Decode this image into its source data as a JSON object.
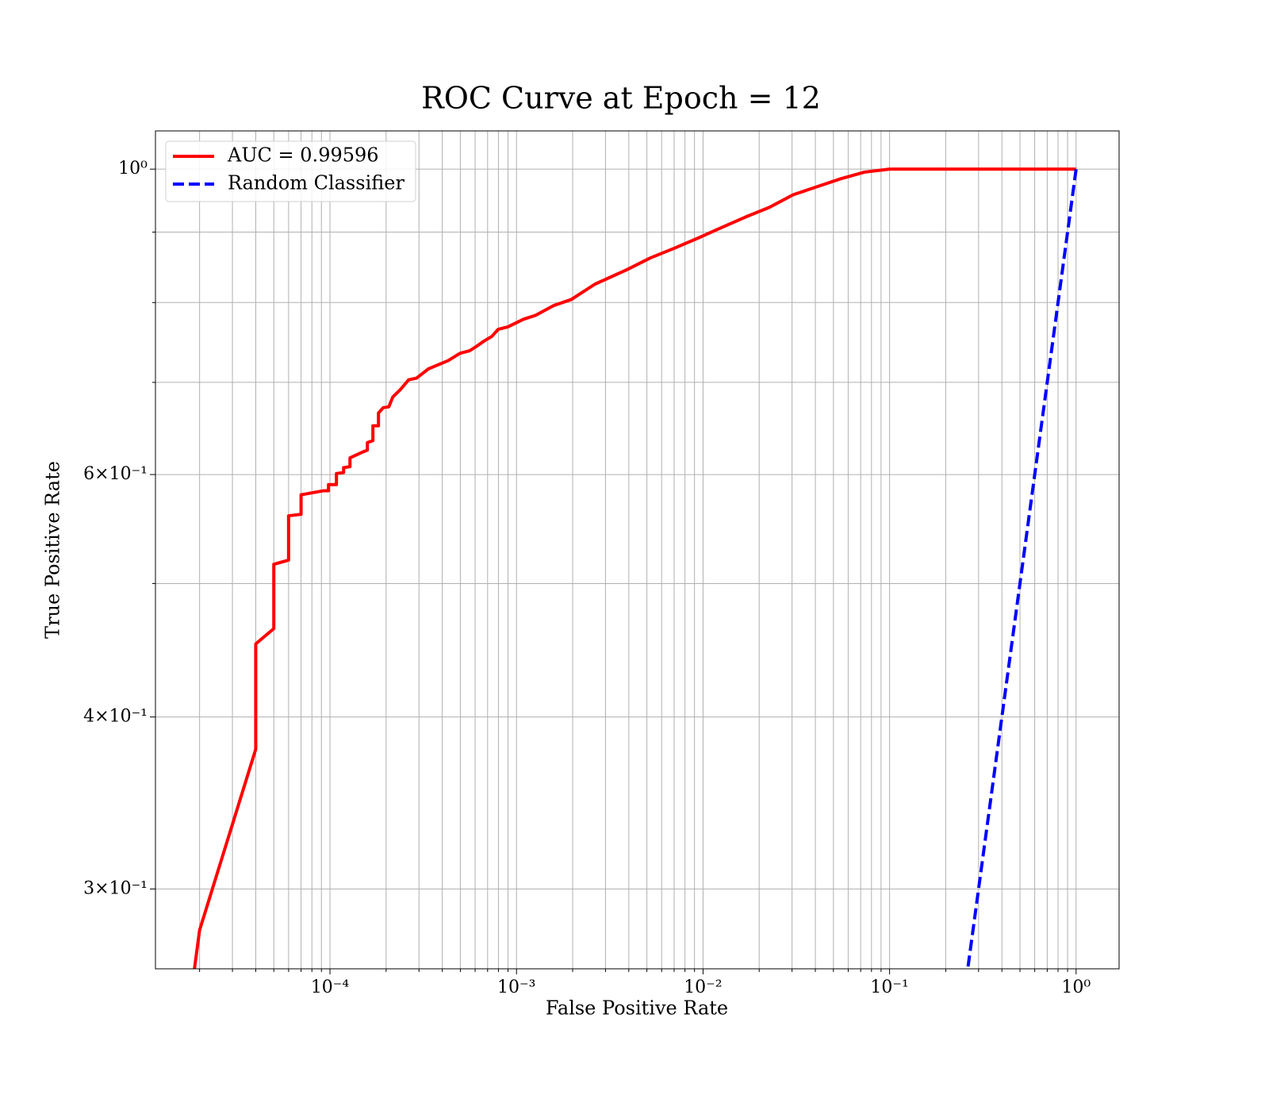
{
  "chart_data": {
    "type": "line",
    "title": "ROC Curve at Epoch = 12",
    "xlabel": "False Positive Rate",
    "ylabel": "True Positive Rate",
    "xscale": "log",
    "yscale": "log",
    "grid": true,
    "legend": "upper left",
    "xlim": [
      1.16e-05,
      1.7
    ],
    "ylim": [
      0.2625,
      1.066
    ],
    "xticks": [
      {
        "value": 0.0001,
        "label": "10⁻⁴"
      },
      {
        "value": 0.001,
        "label": "10⁻³"
      },
      {
        "value": 0.01,
        "label": "10⁻²"
      },
      {
        "value": 0.1,
        "label": "10⁻¹"
      },
      {
        "value": 1,
        "label": "10⁰"
      }
    ],
    "xminorticks": [
      2e-05,
      3e-05,
      4e-05,
      5e-05,
      6e-05,
      7e-05,
      8e-05,
      9e-05,
      0.0002,
      0.0003,
      0.0004,
      0.0005,
      0.0006,
      0.0007,
      0.0008,
      0.0009,
      0.002,
      0.003,
      0.004,
      0.005,
      0.006,
      0.007,
      0.008,
      0.009,
      0.02,
      0.03,
      0.04,
      0.05,
      0.06,
      0.07,
      0.08,
      0.09,
      0.2,
      0.3,
      0.4,
      0.5,
      0.6,
      0.7,
      0.8,
      0.9
    ],
    "yticks": [
      {
        "value": 0.3,
        "label": "3×10⁻¹"
      },
      {
        "value": 0.4,
        "label": "4×10⁻¹"
      },
      {
        "value": 0.6,
        "label": "6×10⁻¹"
      },
      {
        "value": 1,
        "label": "10⁰"
      }
    ],
    "yminorticks": [
      0.5,
      0.7,
      0.8,
      0.9
    ],
    "series": [
      {
        "name": "AUC = 0.99596",
        "color": "#ff0000",
        "style": "solid",
        "x": [
          1.86e-05,
          2e-05,
          4e-05,
          4e-05,
          5e-05,
          5e-05,
          6e-05,
          6e-05,
          7e-05,
          7e-05,
          9.26e-05,
          9.82e-05,
          9.82e-05,
          0.0001083,
          0.0001083,
          0.0001183,
          0.0001183,
          0.000128,
          0.000128,
          0.0001497,
          0.0001587,
          0.0001587,
          0.0001699,
          0.0001699,
          0.000182,
          0.000182,
          0.000193,
          0.0002067,
          0.0002171,
          0.0002394,
          0.000264,
          0.0002911,
          0.0003372,
          0.0004306,
          0.0004986,
          0.000561,
          0.000606,
          0.000669,
          0.000738,
          0.000798,
          0.000897,
          0.001091,
          0.001263,
          0.001582,
          0.001963,
          0.002633,
          0.003894,
          0.00522,
          0.007,
          0.00939,
          0.0126,
          0.01689,
          0.02266,
          0.03039,
          0.04076,
          0.0547,
          0.0733,
          0.1,
          1
        ],
        "y": [
          0.26,
          0.28,
          0.379,
          0.452,
          0.4637,
          0.5164,
          0.52,
          0.56,
          0.5614,
          0.58,
          0.584,
          0.584,
          0.59,
          0.59,
          0.601,
          0.602,
          0.607,
          0.608,
          0.617,
          0.623,
          0.625,
          0.633,
          0.635,
          0.651,
          0.651,
          0.665,
          0.671,
          0.672,
          0.683,
          0.692,
          0.703,
          0.705,
          0.716,
          0.726,
          0.735,
          0.738,
          0.743,
          0.75,
          0.756,
          0.765,
          0.768,
          0.778,
          0.783,
          0.796,
          0.804,
          0.825,
          0.845,
          0.862,
          0.876,
          0.891,
          0.907,
          0.923,
          0.938,
          0.958,
          0.971,
          0.984,
          0.995,
          1,
          1
        ]
      },
      {
        "name": "Random Classifier",
        "color": "#0000ff",
        "style": "dashed",
        "x": [
          0.25,
          1
        ],
        "y": [
          0.25,
          1
        ]
      }
    ]
  }
}
